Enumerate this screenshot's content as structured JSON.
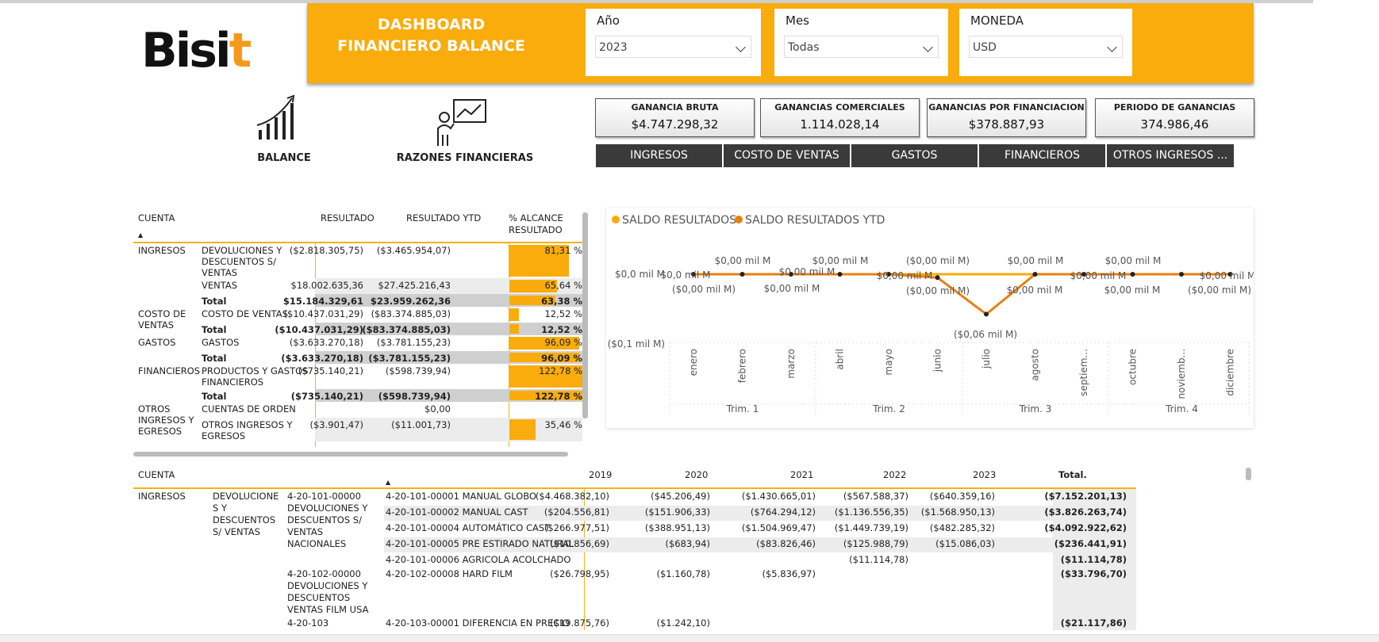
{
  "logo": {
    "text_dark": "Bisi",
    "text_accent": "t"
  },
  "banner": {
    "title_line1": "DASHBOARD",
    "title_line2": "FINANCIERO BALANCE"
  },
  "filters": [
    {
      "label": "Año",
      "value": "2023"
    },
    {
      "label": "Mes",
      "value": "Todas"
    },
    {
      "label": "MONEDA",
      "value": "USD"
    }
  ],
  "nav": {
    "balance": "BALANCE",
    "ratios": "RAZONES FINANCIERAS"
  },
  "kpis": [
    {
      "title": "GANANCIA BRUTA",
      "value": "$4.747.298,32"
    },
    {
      "title": "GANANCIAS COMERCIALES",
      "value": "1.114.028,14"
    },
    {
      "title": "GANANCIAS POR FINANCIACION",
      "value": "$378.887,93"
    },
    {
      "title": "PERIODO DE GANANCIAS",
      "value": "374.986,46"
    }
  ],
  "tabs": [
    "INGRESOS",
    "COSTO DE VENTAS",
    "GASTOS",
    "FINANCIEROS",
    "OTROS INGRESOS ..."
  ],
  "summary": {
    "headers": {
      "cuenta": "CUENTA",
      "resultado": "RESULTADO",
      "ytd": "RESULTADO YTD",
      "alcance1": "% ALCANCE",
      "alcance2": "RESULTADO"
    },
    "rows": [
      {
        "group": "INGRESOS",
        "sub": [
          "DEVOLUCIONES Y",
          "DESCUENTOS S/",
          "VENTAS"
        ],
        "res": "($2.818.305,75)",
        "ytd": "($3.465.954,07)",
        "pct": "81,31 %",
        "pct_value": 81.31,
        "type": "row"
      },
      {
        "group": "",
        "sub": [
          "VENTAS"
        ],
        "res": "$18.002.635,36",
        "ytd": "$27.425.216,43",
        "pct": "65,64 %",
        "pct_value": 65.64,
        "type": "row"
      },
      {
        "group": "",
        "sub": [
          "Total"
        ],
        "res": "$15.184.329,61",
        "ytd": "$23.959.262,36",
        "pct": "63,38 %",
        "pct_value": 63.38,
        "type": "total"
      },
      {
        "group": "COSTO DE VENTAS",
        "sub": [
          "COSTO DE VENTAS"
        ],
        "res": "($10.437.031,29)",
        "ytd": "($83.374.885,03)",
        "pct": "12,52 %",
        "pct_value": 12.52,
        "type": "row"
      },
      {
        "group": "",
        "sub": [
          "Total"
        ],
        "res": "($10.437.031,29)",
        "ytd": "($83.374.885,03)",
        "pct": "12,52 %",
        "pct_value": 12.52,
        "type": "total"
      },
      {
        "group": "GASTOS",
        "sub": [
          "GASTOS"
        ],
        "res": "($3.633.270,18)",
        "ytd": "($3.781.155,23)",
        "pct": "96,09 %",
        "pct_value": 96.09,
        "type": "row"
      },
      {
        "group": "",
        "sub": [
          "Total"
        ],
        "res": "($3.633.270,18)",
        "ytd": "($3.781.155,23)",
        "pct": "96,09 %",
        "pct_value": 96.09,
        "type": "total"
      },
      {
        "group": "FINANCIEROS",
        "sub": [
          "PRODUCTOS Y GASTOS",
          "FINANCIEROS"
        ],
        "res": "($735.140,21)",
        "ytd": "($598.739,94)",
        "pct": "122,78 %",
        "pct_value": 122.78,
        "type": "row"
      },
      {
        "group": "",
        "sub": [
          "Total"
        ],
        "res": "($735.140,21)",
        "ytd": "($598.739,94)",
        "pct": "122,78 %",
        "pct_value": 122.78,
        "type": "total"
      },
      {
        "group": "OTROS INGRESOS Y EGRESOS",
        "sub": [
          "CUENTAS DE ORDEN"
        ],
        "res": "",
        "ytd": "$0,00",
        "pct": "",
        "pct_value": 0,
        "type": "row"
      },
      {
        "group": "",
        "sub": [
          "OTROS INGRESOS Y",
          "EGRESOS"
        ],
        "res": "($3.901,47)",
        "ytd": "($11.001,73)",
        "pct": "35,46 %",
        "pct_value": 35.46,
        "type": "row"
      }
    ]
  },
  "chart": {
    "legend": [
      "SALDO RESULTADOS",
      "SALDO RESULTADOS YTD"
    ],
    "colors": {
      "s1": "#f9ac0c",
      "s2": "#e8800f"
    },
    "y_labels": [
      "$0,0 mil M",
      "($0,1 mil M)"
    ],
    "months": [
      "enero",
      "febrero",
      "marzo",
      "abril",
      "mayo",
      "junio",
      "julio",
      "agosto",
      "septiem...",
      "octubre",
      "noviemb...",
      "diciembre"
    ],
    "quarters": [
      "Trim. 1",
      "Trim. 2",
      "Trim. 3",
      "Trim. 4"
    ],
    "above_labels": [
      "$0,00 mil M",
      "$0,00 mil M",
      "($0,00 mil M)",
      "$0,00 mil M",
      "$0,00 mil M"
    ],
    "below_labels": [
      "($0,00 mil M)",
      "$0,00 mil M",
      "($0,00 mil M)",
      "$0,00 mil M",
      "$0,00 mil M",
      "($0,00 mil M)"
    ],
    "mid_labels": [
      "$0,0 mil M",
      "$0,00 mil M",
      "$0,00 mil M",
      "$0,00 mil M",
      "$0,00 mil M"
    ],
    "july_label": "($0,06 mil M)"
  },
  "chart_data": {
    "type": "line",
    "categories": [
      "enero",
      "febrero",
      "marzo",
      "abril",
      "mayo",
      "junio",
      "julio",
      "agosto",
      "septiem...",
      "octubre",
      "noviemb...",
      "diciembre"
    ],
    "series": [
      {
        "name": "SALDO RESULTADOS",
        "values": [
          0,
          0,
          0,
          0,
          0,
          0,
          0,
          0,
          0,
          0,
          0,
          0
        ]
      },
      {
        "name": "SALDO RESULTADOS YTD",
        "values": [
          0,
          0,
          0,
          0,
          0,
          -0.005,
          -0.06,
          0,
          0,
          0,
          0,
          0
        ]
      }
    ],
    "ylim": [
      -0.1,
      0.0
    ]
  },
  "detail": {
    "headers": {
      "cuenta": "CUENTA",
      "y2019": "2019",
      "y2020": "2020",
      "y2021": "2021",
      "y2022": "2022",
      "y2023": "2023",
      "total": "Total."
    },
    "group": "INGRESOS",
    "sub": [
      "DEVOLUCIONE",
      "S Y",
      "DESCUENTOS",
      "S/ VENTAS"
    ],
    "acc1": [
      "4-20-101-00000",
      "DEVOLUCIONES Y",
      "DESCUENTOS S/",
      "VENTAS",
      "NACIONALES"
    ],
    "acc2": [
      "4-20-102-00000",
      "DEVOLUCIONES Y",
      "DESCUENTOS",
      "VENTAS FILM USA"
    ],
    "acc3": "4-20-103",
    "rows": [
      {
        "name": "4-20-101-00001 MANUAL GLOBO",
        "v": [
          "($4.468.382,10)",
          "($45.206,49)",
          "($1.430.665,01)",
          "($567.588,37)",
          "($640.359,16)"
        ],
        "total": "($7.152.201,13)"
      },
      {
        "name": "4-20-101-00002 MANUAL CAST",
        "v": [
          "($204.556,81)",
          "($151.906,33)",
          "($764.294,12)",
          "($1.136.556,35)",
          "($1.568.950,13)"
        ],
        "total": "($3.826.263,74)"
      },
      {
        "name": "4-20-101-00004 AUTOMÁTICO CAST",
        "v": [
          "($266.977,51)",
          "($388.951,13)",
          "($1.504.969,47)",
          "($1.449.739,19)",
          "($482.285,32)"
        ],
        "total": "($4.092.922,62)"
      },
      {
        "name": "4-20-101-00005 PRE ESTIRADO NATURAL",
        "v": [
          "($10.856,69)",
          "($683,94)",
          "($83.826,46)",
          "($125.988,79)",
          "($15.086,03)"
        ],
        "total": "($236.441,91)"
      },
      {
        "name": "4-20-101-00006 AGRICOLA ACOLCHADO",
        "v": [
          "",
          "",
          "",
          "($11.114,78)",
          ""
        ],
        "total": "($11.114,78)"
      },
      {
        "name": "4-20-102-00008 HARD FILM",
        "v": [
          "($26.798,95)",
          "($1.160,78)",
          "($5.836,97)",
          "",
          ""
        ],
        "total": "($33.796,70)"
      },
      {
        "name": "4-20-103-00001 DIFERENCIA EN PRECIO",
        "v": [
          "($19.875,76)",
          "($1.242,10)",
          "",
          "",
          ""
        ],
        "total": "($21.117,86)"
      }
    ]
  }
}
